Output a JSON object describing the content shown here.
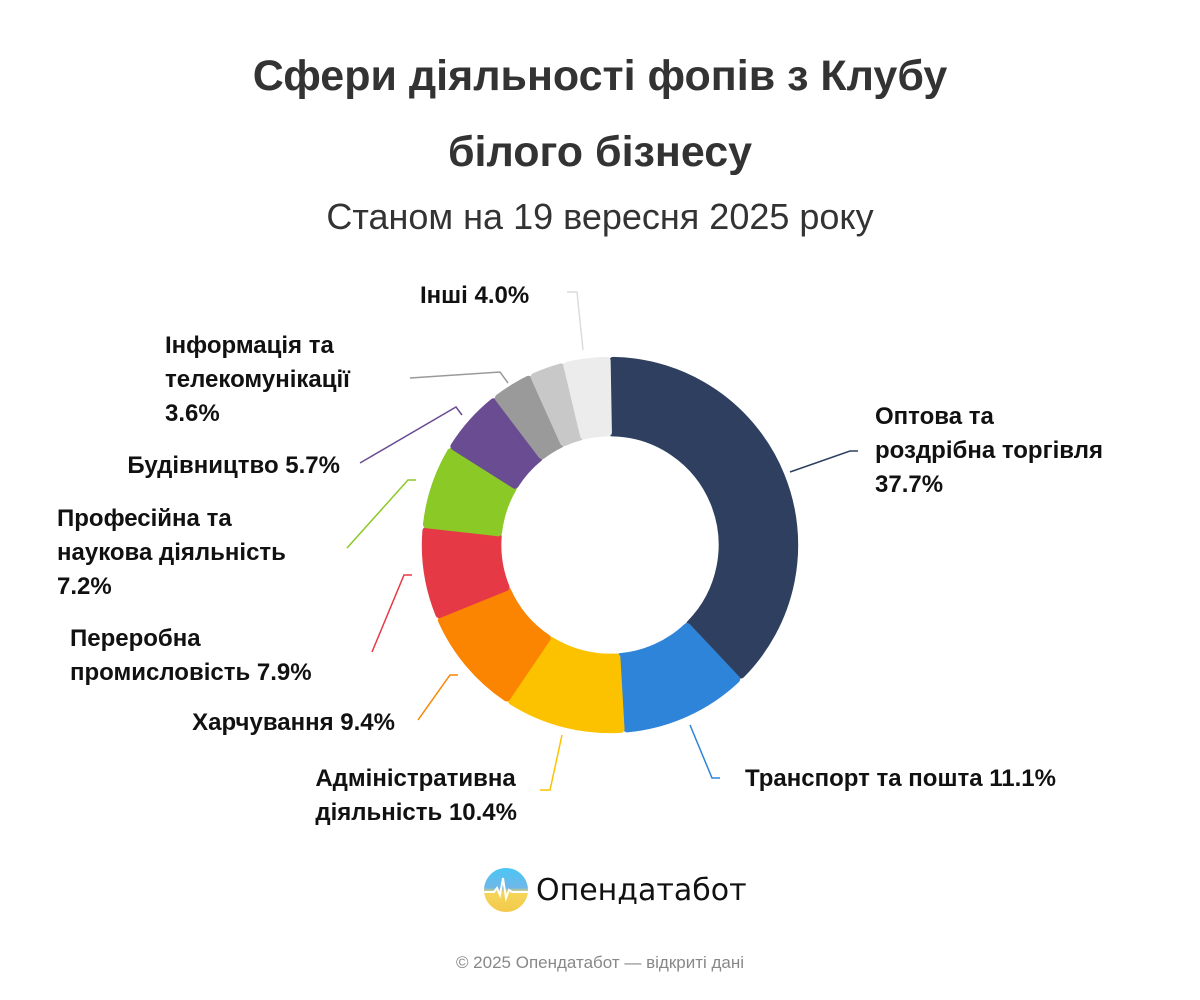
{
  "chart_data": {
    "type": "pie",
    "variant": "donut",
    "title": "Сфери діяльності фопів з Клубу білого бізнесу",
    "title_lines": [
      "Сфери діяльності фопів з Клубу",
      "білого бізнесу"
    ],
    "subtitle": "Станом на 19 вересня 2025 року",
    "unit": "%",
    "slices": [
      {
        "name": "Оптова та роздрібна торгівля",
        "value": 37.7,
        "color": "#2e3f5f",
        "label_lines": [
          "Оптова та",
          "роздрібна торгівля",
          "37.7%"
        ]
      },
      {
        "name": "Транспорт та пошта",
        "value": 11.1,
        "color": "#2d84d9",
        "label_lines": [
          "Транспорт та пошта 11.1%"
        ]
      },
      {
        "name": "Адміністративна діяльність",
        "value": 10.4,
        "color": "#fcc200",
        "label_lines": [
          "Адміністративна",
          "діяльність 10.4%"
        ]
      },
      {
        "name": "Харчування",
        "value": 9.4,
        "color": "#fb8401",
        "label_lines": [
          "Харчування 9.4%"
        ]
      },
      {
        "name": "Переробна промисловість",
        "value": 7.9,
        "color": "#e63946",
        "label_lines": [
          "Переробна",
          "промисловість 7.9%"
        ]
      },
      {
        "name": "Професійна та наукова діяльність",
        "value": 7.2,
        "color": "#8ac926",
        "label_lines": [
          "Професійна та",
          "наукова діяльність",
          "7.2%"
        ]
      },
      {
        "name": "Будівництво",
        "value": 5.7,
        "color": "#6a4c93",
        "label_lines": [
          "Будівництво 5.7%"
        ]
      },
      {
        "name": "Інформація та телекомунікації",
        "value": 3.6,
        "color": "#9a9a9a",
        "label_lines": [
          "Інформація та",
          "телекомунікації",
          "3.6%"
        ]
      },
      {
        "name": "",
        "value": 3.0,
        "color": "#c8c8c8",
        "label_lines": []
      },
      {
        "name": "Інші",
        "value": 4.0,
        "color": "#ececec",
        "label_lines": [
          "Інші 4.0%"
        ]
      }
    ]
  },
  "brand": {
    "name": "Опендатабот"
  },
  "footer": "© 2025 Опендатабот — відкриті дані"
}
